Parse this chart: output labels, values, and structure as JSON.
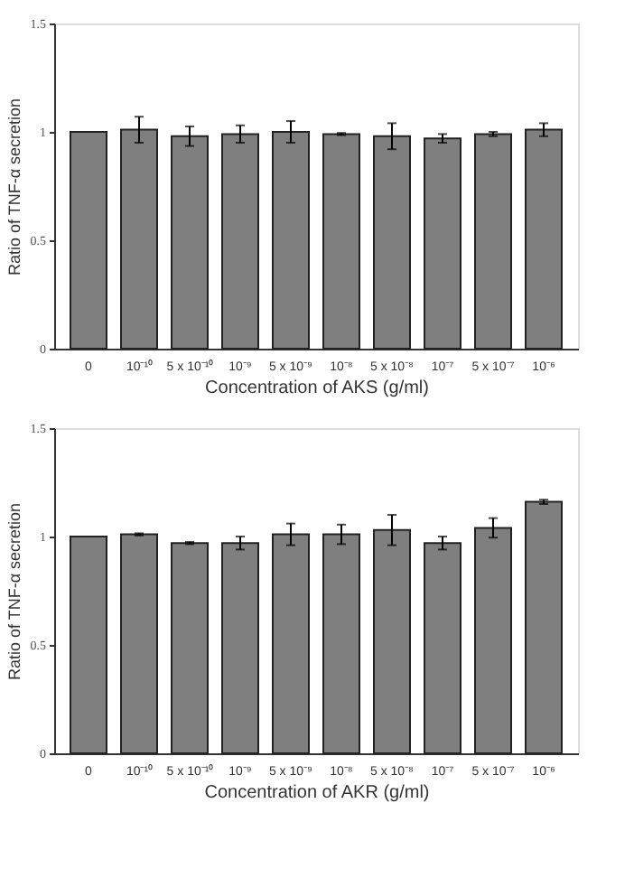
{
  "chart_data": [
    {
      "type": "bar",
      "xlabel": "Concentration of AKS (g/ml)",
      "ylabel": "Ratio of TNF-α secretion",
      "categories": [
        "0",
        "10⁻¹⁰",
        "5 x 10⁻¹⁰",
        "10⁻⁹",
        "5 x 10⁻⁹",
        "10⁻⁸",
        "5 x 10⁻⁸",
        "10⁻⁷",
        "5 x 10⁻⁷",
        "10⁻⁶"
      ],
      "values": [
        1.0,
        1.01,
        0.98,
        0.99,
        1.0,
        0.99,
        0.98,
        0.97,
        0.99,
        1.01
      ],
      "errors": [
        null,
        0.06,
        0.045,
        0.04,
        0.05,
        0.005,
        0.06,
        0.02,
        0.01,
        0.03
      ],
      "color": "#7f7f7f",
      "ylim": [
        0,
        1.5
      ],
      "yticks": [
        0,
        0.5,
        1,
        1.5
      ],
      "grid": false
    },
    {
      "type": "bar",
      "xlabel": "Concentration of  AKR (g/ml)",
      "ylabel": "Ratio of TNF-α secretion",
      "categories": [
        "0",
        "10⁻¹⁰",
        "5 x 10⁻¹⁰",
        "10⁻⁹",
        "5 x 10⁻⁹",
        "10⁻⁸",
        "5 x 10⁻⁸",
        "10⁻⁷",
        "5 x 10⁻⁷",
        "10⁻⁶"
      ],
      "values": [
        1.0,
        1.01,
        0.97,
        0.97,
        1.01,
        1.01,
        1.03,
        0.97,
        1.04,
        1.16
      ],
      "errors": [
        null,
        0.005,
        0.005,
        0.03,
        0.05,
        0.045,
        0.07,
        0.03,
        0.045,
        0.01
      ],
      "color": "#7f7f7f",
      "ylim": [
        0,
        1.5
      ],
      "yticks": [
        0,
        0.5,
        1,
        1.5
      ],
      "grid": false
    }
  ]
}
